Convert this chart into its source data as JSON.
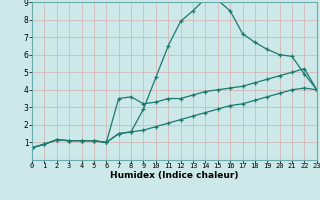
{
  "xlabel": "Humidex (Indice chaleur)",
  "xlim": [
    0,
    23
  ],
  "ylim": [
    0,
    9
  ],
  "xticks": [
    0,
    1,
    2,
    3,
    4,
    5,
    6,
    7,
    8,
    9,
    10,
    11,
    12,
    13,
    14,
    15,
    16,
    17,
    18,
    19,
    20,
    21,
    22,
    23
  ],
  "yticks": [
    1,
    2,
    3,
    4,
    5,
    6,
    7,
    8,
    9
  ],
  "bg_color": "#cce8e8",
  "grid_color": "#d4b8b8",
  "line_color": "#1a7a6e",
  "line1_x": [
    0,
    1,
    2,
    3,
    4,
    5,
    6,
    7,
    8,
    9,
    10,
    11,
    12,
    13,
    14,
    15,
    16,
    17,
    18,
    19,
    20,
    21,
    22,
    23
  ],
  "line1_y": [
    0.7,
    0.9,
    1.15,
    1.1,
    1.1,
    1.1,
    1.0,
    1.5,
    1.6,
    2.9,
    4.7,
    6.5,
    7.9,
    8.5,
    9.2,
    9.1,
    8.5,
    7.2,
    6.7,
    6.3,
    6.0,
    5.9,
    4.9,
    4.0
  ],
  "line2_x": [
    0,
    1,
    2,
    3,
    4,
    5,
    6,
    7,
    8,
    9,
    10,
    11,
    12,
    13,
    14,
    15,
    16,
    17,
    18,
    19,
    20,
    21,
    22,
    23
  ],
  "line2_y": [
    0.7,
    0.9,
    1.15,
    1.1,
    1.1,
    1.1,
    1.0,
    3.5,
    3.6,
    3.2,
    3.3,
    3.5,
    3.5,
    3.7,
    3.9,
    4.0,
    4.1,
    4.2,
    4.4,
    4.6,
    4.8,
    5.0,
    5.2,
    4.0
  ],
  "line3_x": [
    0,
    1,
    2,
    3,
    4,
    5,
    6,
    7,
    8,
    9,
    10,
    11,
    12,
    13,
    14,
    15,
    16,
    17,
    18,
    19,
    20,
    21,
    22,
    23
  ],
  "line3_y": [
    0.7,
    0.9,
    1.15,
    1.1,
    1.1,
    1.1,
    1.0,
    1.5,
    1.6,
    1.7,
    1.9,
    2.1,
    2.3,
    2.5,
    2.7,
    2.9,
    3.1,
    3.2,
    3.4,
    3.6,
    3.8,
    4.0,
    4.1,
    4.0
  ]
}
